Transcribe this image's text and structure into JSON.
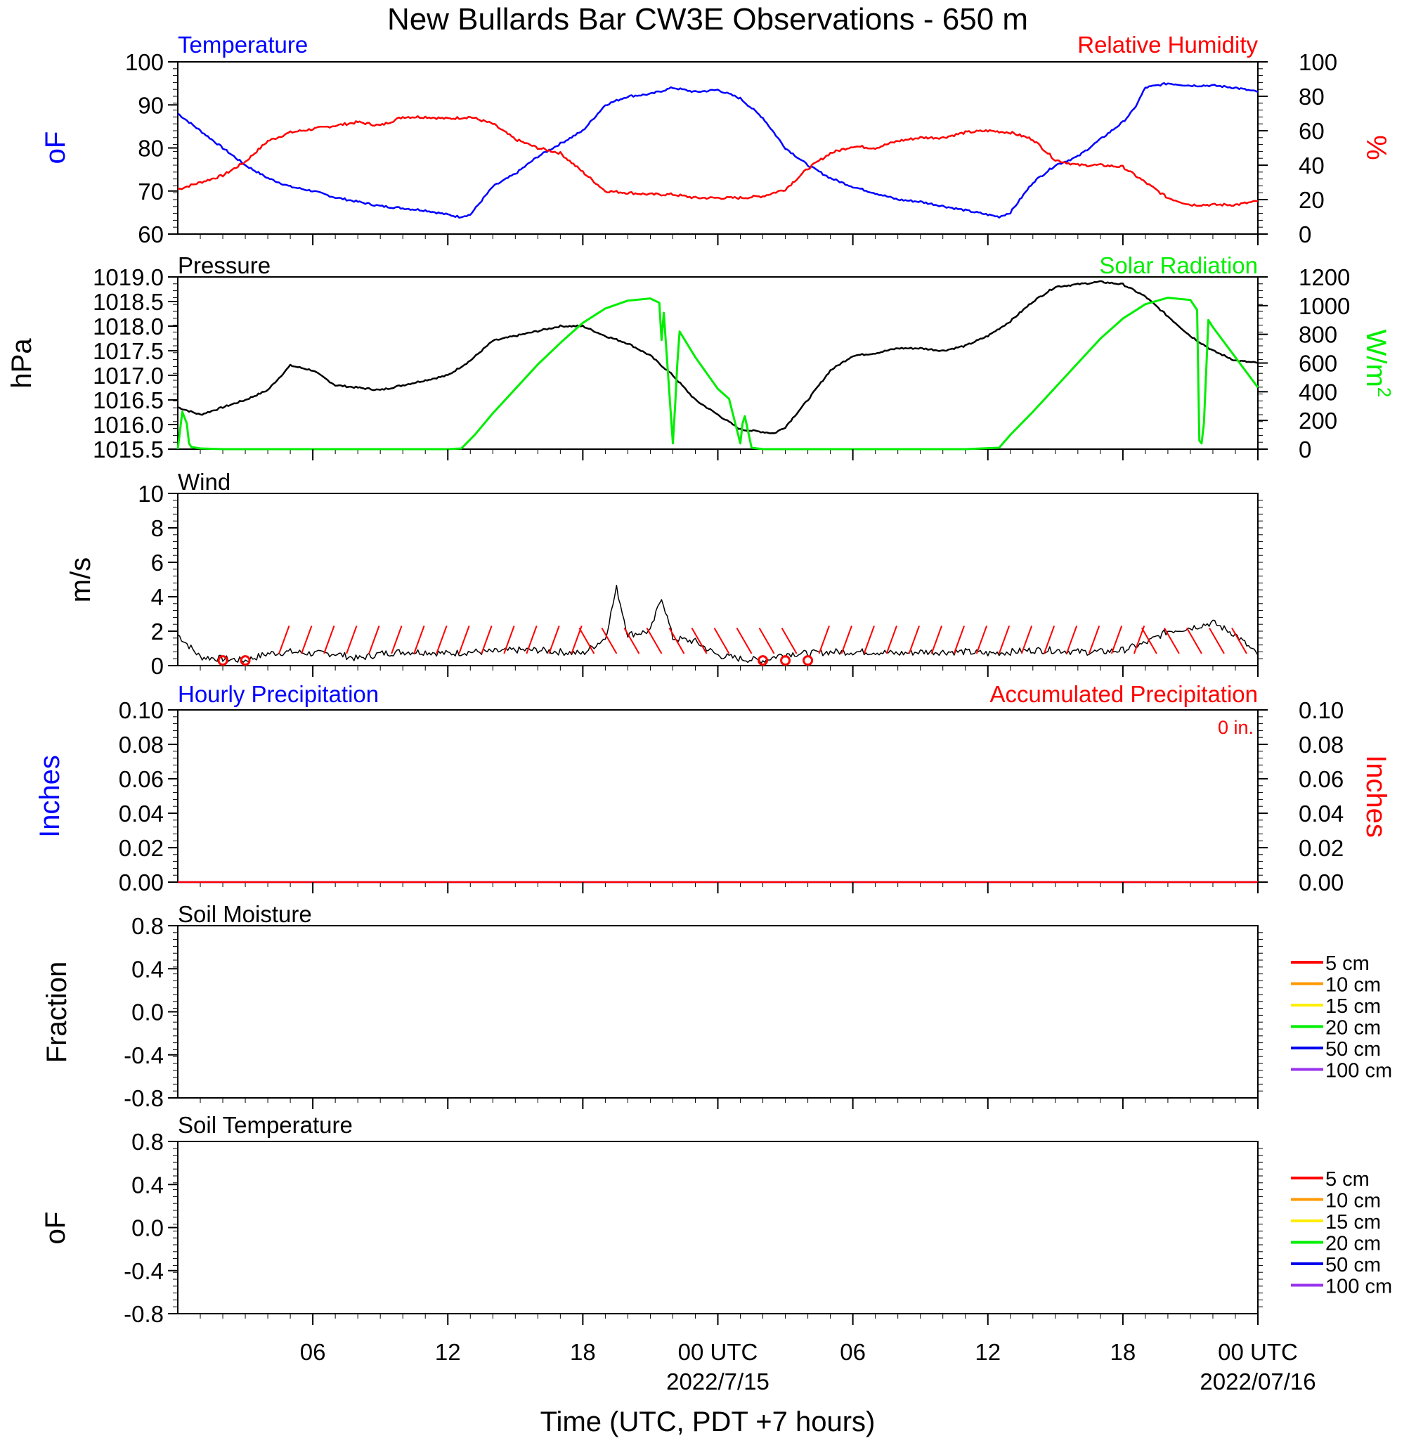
{
  "title": "New Bullards Bar CW3E Observations - 650 m",
  "xaxis": {
    "label": "Time (UTC, PDT +7 hours)",
    "ticks": [
      {
        "hour": 6,
        "label": "06"
      },
      {
        "hour": 12,
        "label": "12"
      },
      {
        "hour": 18,
        "label": "18"
      },
      {
        "hour": 24,
        "label": "00 UTC",
        "date": "2022/7/15"
      },
      {
        "hour": 30,
        "label": "06"
      },
      {
        "hour": 36,
        "label": "12"
      },
      {
        "hour": 42,
        "label": "18"
      },
      {
        "hour": 48,
        "label": "00 UTC",
        "date": "2022/07/16"
      }
    ]
  },
  "panels": {
    "temp_rh": {
      "left_title": "Temperature",
      "right_title": "Relative Humidity",
      "left_unit": "oF",
      "right_unit": "%",
      "left_ticks": [
        "60",
        "70",
        "80",
        "90",
        "100"
      ],
      "right_ticks": [
        "0",
        "20",
        "40",
        "60",
        "80",
        "100"
      ]
    },
    "pressure_solar": {
      "left_title": "Pressure",
      "right_title": "Solar Radiation",
      "left_unit": "hPa",
      "right_unit": "W/m",
      "right_unit_sup": "2",
      "left_ticks": [
        "1015.5",
        "1016.0",
        "1016.5",
        "1017.0",
        "1017.5",
        "1018.0",
        "1018.5",
        "1019.0"
      ],
      "right_ticks": [
        "0",
        "200",
        "400",
        "600",
        "800",
        "1000",
        "1200"
      ]
    },
    "wind": {
      "left_title": "Wind",
      "left_unit": "m/s",
      "left_ticks": [
        "0",
        "2",
        "4",
        "6",
        "8",
        "10"
      ]
    },
    "precip": {
      "left_title": "Hourly Precipitation",
      "right_title": "Accumulated Precipitation",
      "total_label": "0 in.",
      "left_unit": "Inches",
      "right_unit": "Inches",
      "left_ticks": [
        "0.00",
        "0.02",
        "0.04",
        "0.06",
        "0.08",
        "0.10"
      ],
      "right_ticks": [
        "0.00",
        "0.02",
        "0.04",
        "0.06",
        "0.08",
        "0.10"
      ]
    },
    "soil_moisture": {
      "left_title": "Soil Moisture",
      "left_unit": "Fraction",
      "left_ticks": [
        "-0.8",
        "-0.4",
        "0.0",
        "0.4",
        "0.8"
      ]
    },
    "soil_temp": {
      "left_title": "Soil Temperature",
      "left_unit": "oF",
      "left_ticks": [
        "-0.8",
        "-0.4",
        "0.0",
        "0.4",
        "0.8"
      ]
    }
  },
  "soil_legend": [
    {
      "label": "5 cm",
      "color": "#ff0000"
    },
    {
      "label": "10 cm",
      "color": "#ff9900"
    },
    {
      "label": "15 cm",
      "color": "#ffee00"
    },
    {
      "label": "20 cm",
      "color": "#00ee00"
    },
    {
      "label": "50 cm",
      "color": "#0000ee"
    },
    {
      "label": "100 cm",
      "color": "#9933ee"
    }
  ],
  "colors": {
    "temperature": "#0000ff",
    "humidity": "#ff0000",
    "pressure": "#000000",
    "solar": "#00ee00",
    "wind": "#000000",
    "barbs": "#ff0000",
    "hourly_precip": "#0000ff",
    "accum_precip": "#ff0000"
  },
  "chart_data": [
    {
      "type": "line",
      "x_unit": "hours since 2022-07-14 00 UTC",
      "xlim": [
        0,
        48
      ],
      "series": [
        {
          "name": "Temperature",
          "axis": "left",
          "ylim": [
            60,
            100
          ],
          "x": [
            0,
            1,
            2,
            3,
            4,
            5,
            6,
            7,
            8,
            9,
            10,
            11,
            12,
            12.5,
            13,
            14,
            15,
            16,
            17,
            18,
            18.5,
            19,
            20,
            21,
            22,
            23,
            24,
            25,
            26,
            27,
            28,
            29,
            30,
            31,
            32,
            33,
            34,
            35,
            36,
            36.5,
            37,
            38,
            39,
            40,
            41,
            42,
            42.5,
            43,
            44,
            45,
            46,
            47,
            48
          ],
          "y": [
            88,
            84,
            80,
            76,
            73,
            71,
            70,
            68.5,
            67.5,
            66.5,
            66,
            65.5,
            64.5,
            64,
            64.5,
            71,
            74,
            78,
            81,
            84,
            87,
            90,
            92,
            92.5,
            94,
            93,
            93.5,
            91.5,
            87,
            80,
            76,
            73,
            71,
            69.5,
            68,
            67.5,
            66.5,
            65.5,
            64.5,
            64,
            65,
            72,
            76,
            78,
            82,
            86,
            89,
            94,
            95,
            94.5,
            94.5,
            94,
            93
          ]
        },
        {
          "name": "Relative Humidity",
          "axis": "right",
          "ylim": [
            0,
            100
          ],
          "x": [
            0,
            1,
            2,
            3,
            4,
            5,
            6,
            7,
            8,
            9,
            10,
            11,
            12,
            13,
            14,
            15,
            16,
            17,
            18,
            19,
            20,
            21,
            22,
            23,
            24,
            25,
            26,
            27,
            28,
            29,
            30,
            31,
            32,
            33,
            34,
            35,
            36,
            37,
            38,
            39,
            40,
            41,
            42,
            43,
            44,
            45,
            46,
            47,
            48
          ],
          "y": [
            26,
            30,
            34,
            42,
            54,
            59,
            61,
            63,
            65,
            63,
            68,
            68,
            67,
            68,
            64,
            55,
            50,
            47,
            36,
            25,
            24,
            23,
            23,
            21,
            21,
            21,
            22,
            26,
            38,
            47,
            51,
            50,
            54,
            56,
            56,
            59,
            60,
            59,
            55,
            43,
            40,
            40,
            39,
            30,
            21,
            17,
            17,
            17,
            19
          ]
        },
        {
          "name": "Pressure",
          "axis": "left",
          "ylim": [
            1015.5,
            1019.0
          ],
          "x": [
            0,
            1,
            2,
            3,
            4,
            5,
            6,
            7,
            8,
            9,
            10,
            11,
            12,
            13,
            14,
            15,
            16,
            17,
            18,
            19,
            20,
            21,
            22,
            23,
            24,
            25,
            26,
            26.5,
            27,
            28,
            29,
            30,
            31,
            32,
            33,
            34,
            35,
            36,
            37,
            38,
            39,
            40,
            41,
            42,
            43,
            44,
            45,
            46,
            47,
            48
          ],
          "y": [
            1016.35,
            1016.2,
            1016.35,
            1016.5,
            1016.7,
            1017.2,
            1017.1,
            1016.8,
            1016.75,
            1016.7,
            1016.8,
            1016.9,
            1017.0,
            1017.3,
            1017.7,
            1017.8,
            1017.9,
            1018.0,
            1018.0,
            1017.8,
            1017.65,
            1017.4,
            1017.0,
            1016.5,
            1016.2,
            1015.9,
            1015.85,
            1015.82,
            1015.95,
            1016.5,
            1017.1,
            1017.4,
            1017.45,
            1017.55,
            1017.55,
            1017.5,
            1017.6,
            1017.8,
            1018.1,
            1018.5,
            1018.8,
            1018.85,
            1018.9,
            1018.85,
            1018.6,
            1018.2,
            1017.8,
            1017.5,
            1017.3,
            1017.25
          ]
        },
        {
          "name": "Solar Radiation",
          "axis": "right",
          "ylim": [
            0,
            1200
          ],
          "x": [
            0,
            0.2,
            0.4,
            0.5,
            0.6,
            0.8,
            1,
            2,
            3,
            4,
            5,
            6,
            7,
            8,
            9,
            10,
            11,
            12,
            12.6,
            13.2,
            14,
            15,
            16,
            17,
            18,
            19,
            20,
            21,
            21.4,
            21.5,
            21.6,
            22,
            22.1,
            22.2,
            22.3,
            23,
            24,
            24.5,
            25,
            25.1,
            25.2,
            25.5,
            26,
            27,
            30,
            35,
            36.5,
            37,
            38,
            39,
            40,
            41,
            42,
            43,
            44,
            45,
            45.3,
            45.4,
            45.5,
            45.6,
            45.8,
            46,
            47,
            48
          ],
          "y": [
            0,
            260,
            180,
            40,
            15,
            10,
            5,
            0,
            0,
            0,
            0,
            0,
            0,
            0,
            0,
            0,
            0,
            0,
            5,
            100,
            250,
            420,
            590,
            740,
            880,
            980,
            1035,
            1050,
            1020,
            760,
            950,
            40,
            300,
            600,
            820,
            640,
            420,
            350,
            40,
            180,
            230,
            10,
            0,
            0,
            0,
            0,
            10,
            100,
            260,
            430,
            600,
            770,
            910,
            1010,
            1055,
            1040,
            970,
            60,
            40,
            180,
            900,
            850,
            640,
            430
          ]
        },
        {
          "name": "Wind",
          "axis": "left",
          "ylim": [
            0,
            10
          ],
          "x": [
            0,
            1,
            2,
            3,
            4,
            5,
            6,
            7,
            8,
            9,
            10,
            11,
            12,
            13,
            14,
            15,
            16,
            17,
            18,
            19,
            19.5,
            20,
            21,
            21.5,
            22,
            23,
            24,
            25,
            26,
            27,
            28,
            29,
            30,
            31,
            32,
            33,
            34,
            35,
            36,
            37,
            38,
            39,
            40,
            41,
            42,
            43,
            44,
            45,
            46,
            47,
            48
          ],
          "y": [
            1.8,
            0.5,
            0.4,
            0.3,
            0.7,
            0.8,
            0.7,
            0.7,
            0.4,
            0.7,
            0.8,
            0.8,
            0.7,
            0.8,
            0.8,
            0.9,
            0.9,
            0.8,
            0.7,
            1.6,
            4.5,
            1.8,
            2.0,
            4.0,
            1.6,
            1.4,
            0.6,
            0.4,
            0.3,
            0.7,
            0.7,
            0.8,
            0.8,
            0.8,
            0.7,
            0.8,
            0.8,
            0.8,
            0.7,
            0.8,
            0.9,
            0.9,
            0.8,
            0.8,
            0.9,
            1.3,
            2.0,
            2.2,
            2.5,
            1.8,
            0.6
          ]
        },
        {
          "name": "Hourly Precipitation",
          "axis": "left",
          "ylim": [
            0,
            0.1
          ],
          "x": [
            0,
            48
          ],
          "y": [
            0,
            0
          ]
        },
        {
          "name": "Accumulated Precipitation",
          "axis": "right",
          "ylim": [
            0,
            0.1
          ],
          "x": [
            0,
            48
          ],
          "y": [
            0,
            0
          ]
        }
      ]
    }
  ]
}
